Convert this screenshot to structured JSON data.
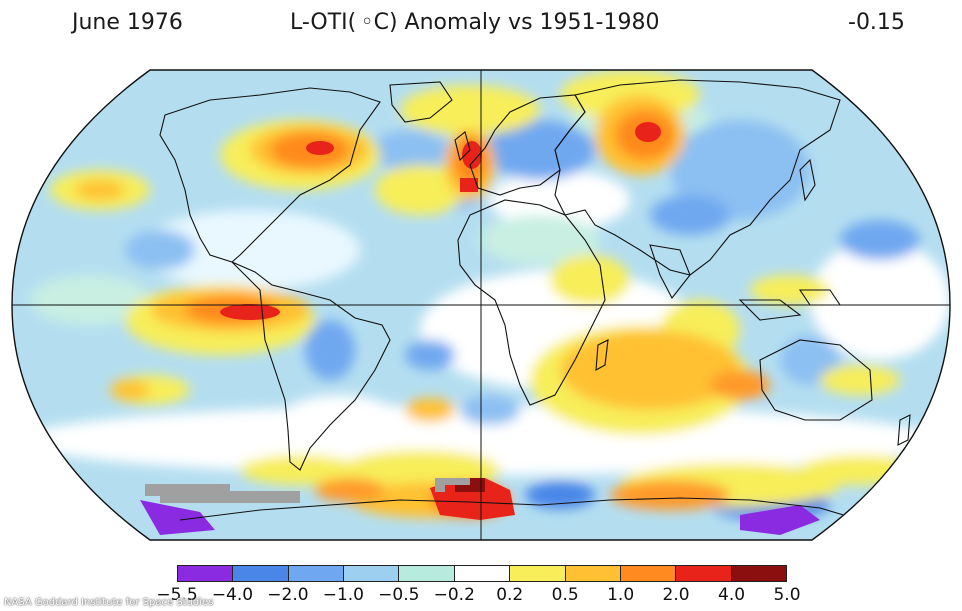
{
  "header": {
    "date_label": "June 1976",
    "title": "L-OTI( ◦C) Anomaly vs 1951-1980",
    "global_mean": "-0.15"
  },
  "legend": {
    "ticks": [
      "−5.5",
      "−4.0",
      "−2.0",
      "−1.0",
      "−0.5",
      "−0.2",
      "0.2",
      "0.5",
      "1.0",
      "2.0",
      "4.0",
      "5.0"
    ],
    "colors": [
      "#8a2be2",
      "#4a86e8",
      "#6fa8f0",
      "#9ccff0",
      "#b7ebde",
      "#ffffff",
      "#f7ee5a",
      "#ffc133",
      "#ff8a1f",
      "#e8241a",
      "#8b0f0f"
    ]
  },
  "credit": "NASA Goddard Institute for Space Studies",
  "map_palette": {
    "ocean_base": "#a9d8ef",
    "light_blue": "#9ccff0",
    "mid_blue": "#6fa8f0",
    "pale_green": "#b7ebde",
    "white": "#ffffff",
    "yellow": "#f7ee5a",
    "orange_light": "#ffc133",
    "orange": "#ff8a1f",
    "red": "#e8241a",
    "dark_red": "#8b0f0f",
    "purple": "#8a2be2",
    "no_data": "#a0a0a0"
  }
}
